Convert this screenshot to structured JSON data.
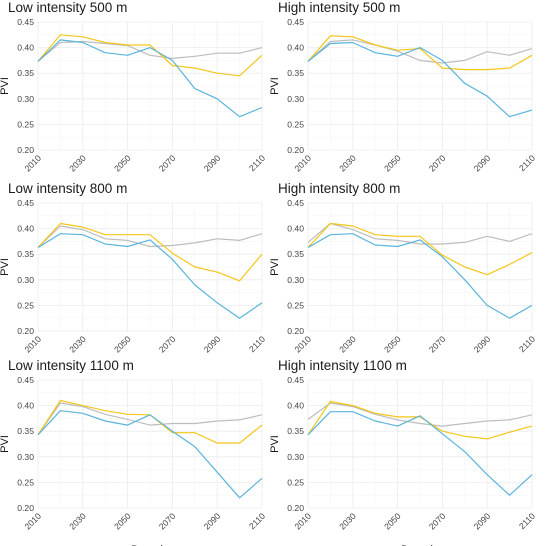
{
  "colors": {
    "grey": "#bdbdbd",
    "yellow": "#f5c518",
    "blue": "#5ab4dc"
  },
  "chart_data": [
    {
      "type": "line",
      "title": "Low intensity 500 m",
      "xlabel": "",
      "ylabel": "PVI",
      "x": [
        2010,
        2020,
        2030,
        2040,
        2050,
        2060,
        2070,
        2080,
        2090,
        2100,
        2110
      ],
      "xticks": [
        "2010",
        "2030",
        "2050",
        "2070",
        "2090",
        "2110"
      ],
      "yticks": [
        "0.20",
        "0.25",
        "0.30",
        "0.35",
        "0.40",
        "0.45"
      ],
      "ylim": [
        0.2,
        0.45
      ],
      "xlim": [
        2010,
        2110
      ],
      "grid": true,
      "series": [
        {
          "color": "grey",
          "values": [
            0.373,
            0.41,
            0.412,
            0.408,
            0.404,
            0.385,
            0.379,
            0.383,
            0.389,
            0.389,
            0.4
          ]
        },
        {
          "color": "yellow",
          "values": [
            0.373,
            0.425,
            0.421,
            0.41,
            0.405,
            0.405,
            0.365,
            0.36,
            0.35,
            0.345,
            0.385
          ]
        },
        {
          "color": "blue",
          "values": [
            0.373,
            0.415,
            0.41,
            0.39,
            0.385,
            0.4,
            0.375,
            0.32,
            0.3,
            0.265,
            0.283
          ]
        }
      ]
    },
    {
      "type": "line",
      "title": "High intensity 500 m",
      "xlabel": "",
      "ylabel": "PVI",
      "x": [
        2010,
        2020,
        2030,
        2040,
        2050,
        2060,
        2070,
        2080,
        2090,
        2100,
        2110
      ],
      "xticks": [
        "2010",
        "2030",
        "2050",
        "2070",
        "2090",
        "2110"
      ],
      "yticks": [
        "0.20",
        "0.25",
        "0.30",
        "0.35",
        "0.40",
        "0.45"
      ],
      "ylim": [
        0.2,
        0.45
      ],
      "xlim": [
        2010,
        2110
      ],
      "grid": true,
      "series": [
        {
          "color": "grey",
          "values": [
            0.373,
            0.412,
            0.415,
            0.405,
            0.393,
            0.375,
            0.37,
            0.375,
            0.392,
            0.385,
            0.398
          ]
        },
        {
          "color": "yellow",
          "values": [
            0.373,
            0.423,
            0.421,
            0.405,
            0.395,
            0.398,
            0.36,
            0.357,
            0.357,
            0.36,
            0.385
          ]
        },
        {
          "color": "blue",
          "values": [
            0.373,
            0.408,
            0.41,
            0.39,
            0.383,
            0.4,
            0.375,
            0.33,
            0.305,
            0.265,
            0.278
          ]
        }
      ]
    },
    {
      "type": "line",
      "title": "Low intensity 800 m",
      "xlabel": "",
      "ylabel": "PVI",
      "x": [
        2010,
        2020,
        2030,
        2040,
        2050,
        2060,
        2070,
        2080,
        2090,
        2100,
        2110
      ],
      "xticks": [
        "2010",
        "2030",
        "2050",
        "2070",
        "2090",
        "2110"
      ],
      "yticks": [
        "0.20",
        "0.25",
        "0.30",
        "0.35",
        "0.40",
        "0.45"
      ],
      "ylim": [
        0.2,
        0.45
      ],
      "xlim": [
        2010,
        2110
      ],
      "grid": true,
      "series": [
        {
          "color": "grey",
          "values": [
            0.363,
            0.405,
            0.398,
            0.38,
            0.377,
            0.365,
            0.367,
            0.372,
            0.38,
            0.377,
            0.39
          ]
        },
        {
          "color": "yellow",
          "values": [
            0.363,
            0.41,
            0.403,
            0.388,
            0.388,
            0.388,
            0.352,
            0.325,
            0.315,
            0.298,
            0.35
          ]
        },
        {
          "color": "blue",
          "values": [
            0.363,
            0.39,
            0.388,
            0.37,
            0.365,
            0.378,
            0.34,
            0.29,
            0.255,
            0.225,
            0.255
          ]
        }
      ]
    },
    {
      "type": "line",
      "title": "High intensity 800 m",
      "xlabel": "",
      "ylabel": "PVI",
      "x": [
        2010,
        2020,
        2030,
        2040,
        2050,
        2060,
        2070,
        2080,
        2090,
        2100,
        2110
      ],
      "xticks": [
        "2010",
        "2030",
        "2050",
        "2070",
        "2090",
        "2110"
      ],
      "yticks": [
        "0.20",
        "0.25",
        "0.30",
        "0.35",
        "0.40",
        "0.45"
      ],
      "ylim": [
        0.2,
        0.45
      ],
      "xlim": [
        2010,
        2110
      ],
      "grid": true,
      "series": [
        {
          "color": "grey",
          "values": [
            0.373,
            0.41,
            0.398,
            0.38,
            0.377,
            0.37,
            0.37,
            0.373,
            0.385,
            0.375,
            0.39
          ]
        },
        {
          "color": "yellow",
          "values": [
            0.363,
            0.41,
            0.405,
            0.388,
            0.385,
            0.385,
            0.348,
            0.325,
            0.31,
            0.33,
            0.353
          ]
        },
        {
          "color": "blue",
          "values": [
            0.363,
            0.388,
            0.39,
            0.368,
            0.365,
            0.378,
            0.345,
            0.3,
            0.25,
            0.225,
            0.25
          ]
        }
      ]
    },
    {
      "type": "line",
      "title": "Low intensity 1100 m",
      "xlabel": "Decade",
      "ylabel": "PVI",
      "x": [
        2010,
        2020,
        2030,
        2040,
        2050,
        2060,
        2070,
        2080,
        2090,
        2100,
        2110
      ],
      "xticks": [
        "2010",
        "2030",
        "2050",
        "2070",
        "2090",
        "2110"
      ],
      "yticks": [
        "0.20",
        "0.25",
        "0.30",
        "0.35",
        "0.40",
        "0.45"
      ],
      "ylim": [
        0.2,
        0.45
      ],
      "xlim": [
        2010,
        2110
      ],
      "grid": true,
      "series": [
        {
          "color": "grey",
          "values": [
            0.343,
            0.405,
            0.398,
            0.383,
            0.373,
            0.362,
            0.365,
            0.365,
            0.37,
            0.372,
            0.382
          ]
        },
        {
          "color": "yellow",
          "values": [
            0.343,
            0.41,
            0.4,
            0.39,
            0.383,
            0.382,
            0.347,
            0.347,
            0.327,
            0.327,
            0.362
          ]
        },
        {
          "color": "blue",
          "values": [
            0.343,
            0.39,
            0.385,
            0.37,
            0.362,
            0.382,
            0.35,
            0.32,
            0.27,
            0.22,
            0.258
          ]
        }
      ]
    },
    {
      "type": "line",
      "title": "High intensity 1100 m",
      "xlabel": "Decade",
      "ylabel": "PVI",
      "x": [
        2010,
        2020,
        2030,
        2040,
        2050,
        2060,
        2070,
        2080,
        2090,
        2100,
        2110
      ],
      "xticks": [
        "2010",
        "2030",
        "2050",
        "2070",
        "2090",
        "2110"
      ],
      "yticks": [
        "0.20",
        "0.25",
        "0.30",
        "0.35",
        "0.40",
        "0.45"
      ],
      "ylim": [
        0.2,
        0.45
      ],
      "xlim": [
        2010,
        2110
      ],
      "grid": true,
      "series": [
        {
          "color": "grey",
          "values": [
            0.373,
            0.405,
            0.398,
            0.383,
            0.372,
            0.365,
            0.36,
            0.365,
            0.37,
            0.372,
            0.382
          ]
        },
        {
          "color": "yellow",
          "values": [
            0.343,
            0.408,
            0.4,
            0.385,
            0.378,
            0.378,
            0.35,
            0.34,
            0.335,
            0.348,
            0.36
          ]
        },
        {
          "color": "blue",
          "values": [
            0.343,
            0.388,
            0.388,
            0.37,
            0.36,
            0.38,
            0.345,
            0.31,
            0.265,
            0.225,
            0.265
          ]
        }
      ]
    }
  ]
}
